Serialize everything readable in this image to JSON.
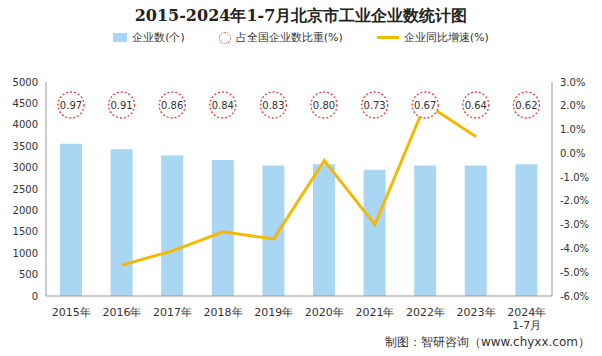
{
  "chart_data": {
    "type": "bar",
    "title": "2015-2024年1-7月北京市工业企业数统计图",
    "source": "制图：智研咨询（www.chyxx.com）",
    "categories": [
      "2015年",
      "2016年",
      "2017年",
      "2018年",
      "2019年",
      "2020年",
      "2021年",
      "2022年",
      "2023年",
      "2024年\n1-7月"
    ],
    "series": [
      {
        "name": "企业数(个)",
        "type": "bar",
        "color": "#a9d6f2",
        "values": [
          3560,
          3430,
          3280,
          3180,
          3050,
          3080,
          2950,
          3050,
          3050,
          3080
        ]
      },
      {
        "name": "占全国企业数比重(%)",
        "type": "text",
        "marker": "circle",
        "line_style": "dotted",
        "color": "#e03c31",
        "values": [
          0.97,
          0.91,
          0.86,
          0.84,
          0.83,
          0.8,
          0.73,
          0.67,
          0.64,
          0.62
        ],
        "value_labels": [
          "0.97",
          "0.91",
          "0.86",
          "0.84",
          "0.83",
          "0.80",
          "0.73",
          "0.67",
          "0.64",
          "0.62"
        ]
      },
      {
        "name": "企业同比增速(%)",
        "type": "line",
        "axis": "y2",
        "color": "#f5b800",
        "values": [
          null,
          -4.7,
          -4.1,
          -3.3,
          -3.6,
          -0.3,
          -3.0,
          2.1,
          0.7,
          null
        ]
      }
    ],
    "ylim": [
      0,
      5000
    ],
    "yticks": [
      0,
      500,
      1000,
      1500,
      2000,
      2500,
      3000,
      3500,
      4000,
      4500,
      5000
    ],
    "y2lim": [
      -6,
      3
    ],
    "y2ticks": [
      {
        "value": -6,
        "label": "-6.0%"
      },
      {
        "value": -5,
        "label": "-5.0%"
      },
      {
        "value": -4,
        "label": "-4.0%"
      },
      {
        "value": -3,
        "label": "-3.0%"
      },
      {
        "value": -2,
        "label": "-2.0%"
      },
      {
        "value": -1,
        "label": "-1.0%"
      },
      {
        "value": 0,
        "label": "0.0%"
      },
      {
        "value": 1,
        "label": "1.0%"
      },
      {
        "value": 2,
        "label": "2.0%"
      },
      {
        "value": 3,
        "label": "3.0%"
      }
    ]
  }
}
